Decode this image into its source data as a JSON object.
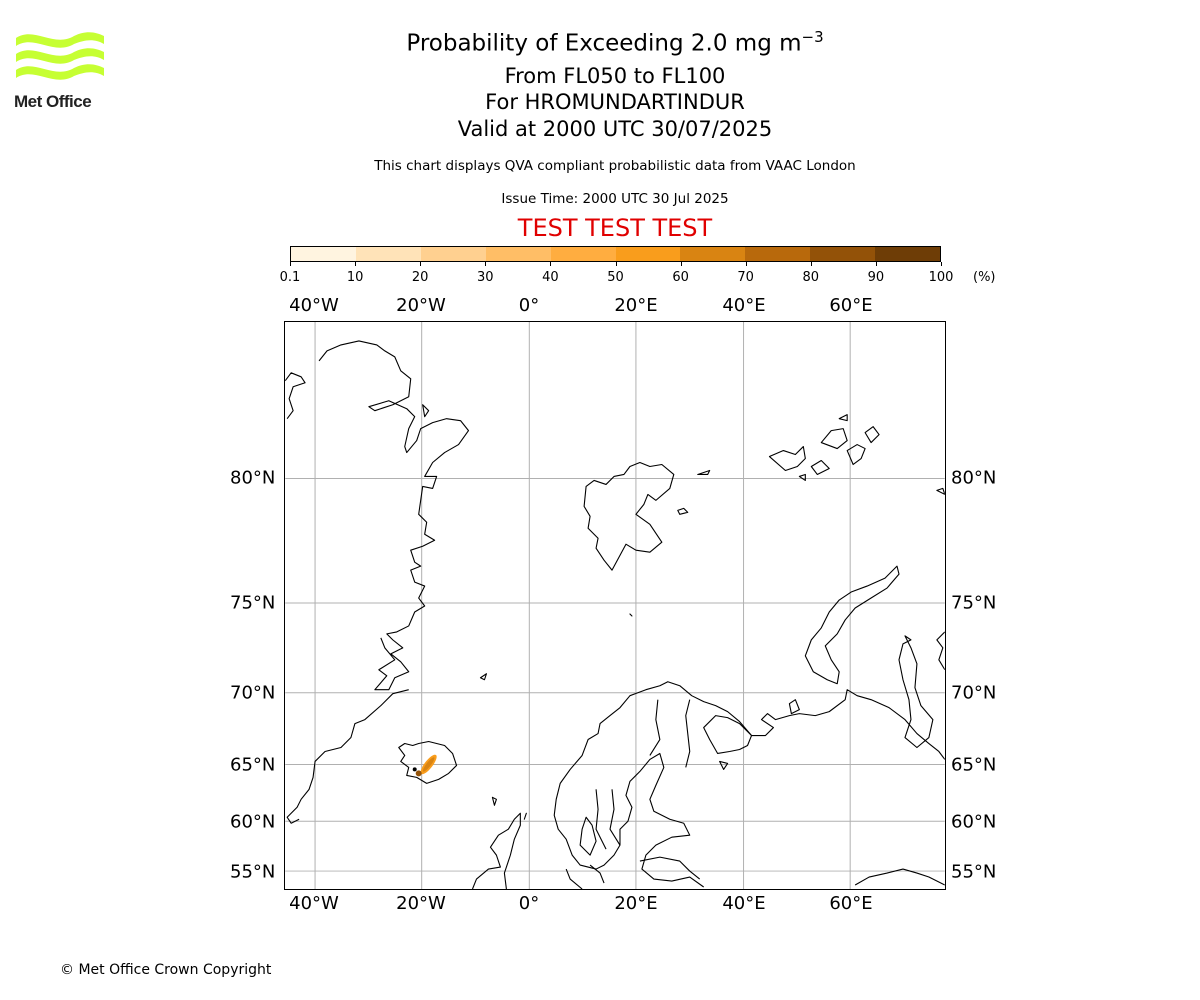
{
  "logo": {
    "text": "Met Office",
    "color": "#c6ff33"
  },
  "title": {
    "line1_prefix": "Probability of Exceeding 2.0 mg m",
    "line1_sup": "−3",
    "line2": "From FL050 to FL100",
    "line3": "For HROMUNDARTINDUR",
    "line4": "Valid at 2000 UTC 30/07/2025"
  },
  "subtitle": "This chart displays QVA compliant probabilistic data from VAAC London",
  "issue_time": "Issue Time: 2000 UTC 30 Jul 2025",
  "test_banner": "TEST TEST TEST",
  "colorbar": {
    "ticks": [
      "0.1",
      "10",
      "20",
      "30",
      "40",
      "50",
      "60",
      "70",
      "80",
      "90",
      "100"
    ],
    "unit": "(%)",
    "colors": [
      "#fff4e0",
      "#ffe3b8",
      "#ffd090",
      "#ffbe66",
      "#ffad40",
      "#f99d1c",
      "#d98412",
      "#b8690c",
      "#935208",
      "#6e3d06"
    ]
  },
  "map": {
    "lon_labels": [
      "40°W",
      "20°W",
      "0°",
      "20°E",
      "40°E",
      "60°E"
    ],
    "lat_labels": [
      "80°N",
      "75°N",
      "70°N",
      "65°N",
      "60°N",
      "55°N"
    ],
    "grid": true
  },
  "copyright": "© Met Office Crown Copyright"
}
